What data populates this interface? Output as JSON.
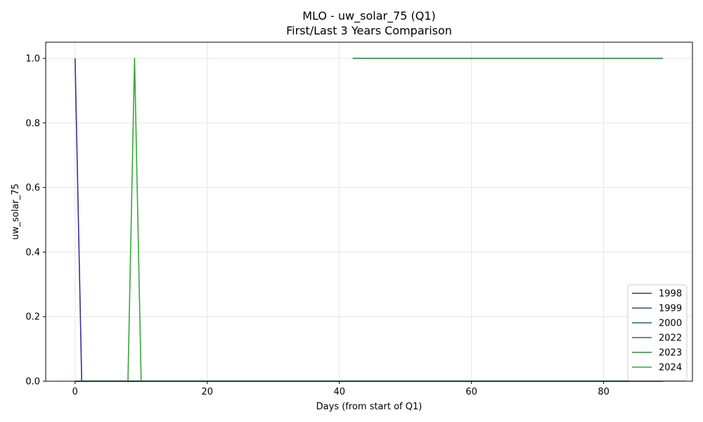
{
  "chart_data": {
    "type": "line",
    "title": "MLO - uw_solar_75 (Q1)",
    "subtitle": "First/Last 3 Years Comparison",
    "xlabel": "Days (from start of Q1)",
    "ylabel": "uw_solar_75",
    "xlim": [
      -4.45,
      93.45
    ],
    "ylim": [
      0,
      1.05
    ],
    "xticks": [
      0,
      20,
      40,
      60,
      80
    ],
    "yticks": [
      0.0,
      0.2,
      0.4,
      0.6,
      0.8,
      1.0
    ],
    "xtick_labels": [
      "0",
      "20",
      "40",
      "60",
      "80"
    ],
    "ytick_labels": [
      "0.0",
      "0.2",
      "0.4",
      "0.6",
      "0.8",
      "1.0"
    ],
    "grid": true,
    "legend_position": "lower-right",
    "series": [
      {
        "name": "1998",
        "color": "#32329a",
        "points": [
          [
            0,
            1.0
          ],
          [
            1,
            0.0
          ],
          [
            89,
            0.0
          ]
        ]
      },
      {
        "name": "1999",
        "color": "#2c4a8a",
        "points": [
          [
            0,
            0.0
          ],
          [
            89,
            0.0
          ]
        ]
      },
      {
        "name": "2000",
        "color": "#2c5e78",
        "points": [
          [
            0,
            0.0
          ],
          [
            89,
            0.0
          ]
        ]
      },
      {
        "name": "2022",
        "color": "#28705a",
        "points": [
          [
            0,
            0.0
          ],
          [
            89,
            0.0
          ]
        ]
      },
      {
        "name": "2023",
        "color": "#2e8a43",
        "segments": [
          [
            [
              0,
              0.0
            ],
            [
              89,
              0.0
            ]
          ],
          [
            [
              42,
              1.0
            ],
            [
              89,
              1.0
            ]
          ]
        ]
      },
      {
        "name": "2024",
        "color": "#36a836",
        "points": [
          [
            0,
            0.0
          ],
          [
            8,
            0.0
          ],
          [
            9,
            1.0
          ],
          [
            10,
            0.0
          ],
          [
            89,
            0.0
          ]
        ]
      }
    ]
  }
}
